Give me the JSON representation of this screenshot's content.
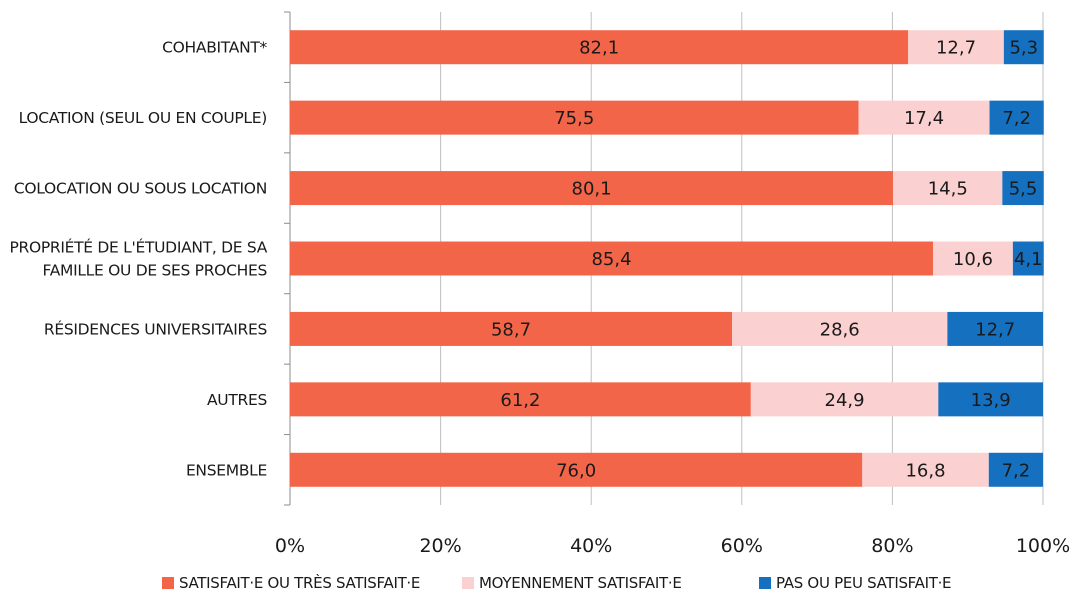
{
  "chart_data": {
    "type": "bar",
    "orientation": "horizontal",
    "stacked": "percent",
    "categories": [
      [
        "COHABITANT*"
      ],
      [
        "LOCATION (SEUL OU EN COUPLE)"
      ],
      [
        "COLOCATION OU SOUS LOCATION"
      ],
      [
        "PROPRIÉTÉ DE L'ÉTUDIANT, DE SA",
        "FAMILLE OU DE SES PROCHES"
      ],
      [
        "RÉSIDENCES UNIVERSITAIRES"
      ],
      [
        "AUTRES"
      ],
      [
        "ENSEMBLE"
      ]
    ],
    "series": [
      {
        "name": "SATISFAIT·E OU TRÈS SATISFAIT·E",
        "color": "#f36549",
        "values": [
          82.1,
          75.5,
          80.1,
          85.4,
          58.7,
          61.2,
          76.0
        ],
        "labels": [
          "82,1",
          "75,5",
          "80,1",
          "85,4",
          "58,7",
          "61,2",
          "76,0"
        ]
      },
      {
        "name": "MOYENNEMENT SATISFAIT·E",
        "color": "#fbd0d0",
        "values": [
          12.7,
          17.4,
          14.5,
          10.6,
          28.6,
          24.9,
          16.8
        ],
        "labels": [
          "12,7",
          "17,4",
          "14,5",
          "10,6",
          "28,6",
          "24,9",
          "16,8"
        ]
      },
      {
        "name": "PAS OU PEU SATISFAIT·E",
        "color": "#1670c0",
        "values": [
          5.3,
          7.2,
          5.5,
          4.1,
          12.7,
          13.9,
          7.2
        ],
        "labels": [
          "5,3",
          "7,2",
          "5,5",
          "4,1",
          "12,7",
          "13,9",
          "7,2"
        ]
      }
    ],
    "x_ticks": [
      "0%",
      "20%",
      "40%",
      "60%",
      "80%",
      "100%"
    ],
    "xlim": [
      0,
      100
    ],
    "grid": true,
    "legend_position": "bottom"
  }
}
